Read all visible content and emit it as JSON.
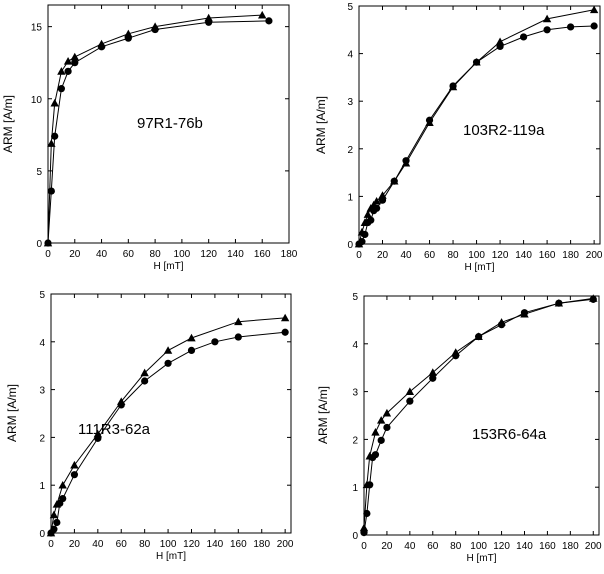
{
  "chart_data": [
    {
      "type": "line",
      "annotation": "97R1-76b",
      "xlabel": "H [mT]",
      "ylabel": "ARM [A/m]",
      "xlim": [
        0,
        180
      ],
      "ylim": [
        0,
        16.5
      ],
      "xticks": [
        0,
        20,
        40,
        60,
        80,
        100,
        120,
        140,
        160,
        180
      ],
      "yticks": [
        0,
        5,
        10,
        15
      ],
      "series": [
        {
          "marker": "triangle",
          "x": [
            0,
            2.5,
            5,
            10,
            15,
            20,
            40,
            60,
            80,
            120,
            160
          ],
          "y": [
            0,
            6.9,
            9.7,
            11.9,
            12.6,
            12.9,
            13.8,
            14.5,
            15.0,
            15.6,
            15.8
          ]
        },
        {
          "marker": "circle",
          "x": [
            0,
            2.5,
            5,
            10,
            15,
            20,
            40,
            60,
            80,
            120,
            165
          ],
          "y": [
            0,
            3.6,
            7.4,
            10.7,
            11.9,
            12.5,
            13.6,
            14.2,
            14.8,
            15.3,
            15.4
          ]
        }
      ]
    },
    {
      "type": "line",
      "annotation": "103R2-119a",
      "xlabel": "H [mT]",
      "ylabel": "ARM [A/m]",
      "xlim": [
        0,
        205
      ],
      "ylim": [
        0,
        5
      ],
      "xticks": [
        0,
        20,
        40,
        60,
        80,
        100,
        120,
        140,
        160,
        180,
        200
      ],
      "yticks": [
        0,
        1,
        2,
        3,
        4,
        5
      ],
      "series": [
        {
          "marker": "triangle",
          "x": [
            0,
            2.5,
            5,
            7.5,
            10,
            12.5,
            15,
            20,
            30,
            40,
            60,
            80,
            100,
            120,
            160,
            200
          ],
          "y": [
            0,
            0.25,
            0.45,
            0.62,
            0.75,
            0.82,
            0.9,
            1.02,
            1.32,
            1.7,
            2.55,
            3.3,
            3.82,
            4.25,
            4.73,
            4.92
          ]
        },
        {
          "marker": "circle",
          "x": [
            0,
            2.5,
            5,
            7.5,
            10,
            12.5,
            15,
            20,
            30,
            40,
            60,
            80,
            100,
            120,
            140,
            160,
            180,
            200
          ],
          "y": [
            0,
            0.05,
            0.2,
            0.45,
            0.5,
            0.7,
            0.75,
            0.92,
            1.32,
            1.75,
            2.6,
            3.32,
            3.82,
            4.15,
            4.35,
            4.5,
            4.56,
            4.58
          ]
        }
      ]
    },
    {
      "type": "line",
      "annotation": "111R3-62a",
      "xlabel": "H [mT]",
      "ylabel": "ARM [A/m]",
      "xlim": [
        0,
        205
      ],
      "ylim": [
        0,
        5
      ],
      "xticks": [
        0,
        20,
        40,
        60,
        80,
        100,
        120,
        140,
        160,
        180,
        200
      ],
      "yticks": [
        0,
        1,
        2,
        3,
        4,
        5
      ],
      "series": [
        {
          "marker": "triangle",
          "x": [
            0,
            2.5,
            5,
            10,
            20,
            40,
            60,
            80,
            100,
            120,
            160,
            200
          ],
          "y": [
            0,
            0.38,
            0.6,
            1.0,
            1.42,
            2.07,
            2.75,
            3.35,
            3.82,
            4.08,
            4.42,
            4.5
          ]
        },
        {
          "marker": "circle",
          "x": [
            0,
            2.5,
            5,
            7.5,
            10,
            20,
            40,
            60,
            80,
            100,
            120,
            140,
            160,
            200
          ],
          "y": [
            0,
            0.08,
            0.22,
            0.62,
            0.72,
            1.22,
            1.98,
            2.68,
            3.18,
            3.55,
            3.82,
            4.0,
            4.1,
            4.2
          ]
        }
      ]
    },
    {
      "type": "line",
      "annotation": "153R6-64a",
      "xlabel": "H [mT]",
      "ylabel": "ARM [A/m]",
      "xlim": [
        0,
        205
      ],
      "ylim": [
        0,
        5
      ],
      "xticks": [
        0,
        20,
        40,
        60,
        80,
        100,
        120,
        140,
        160,
        180,
        200
      ],
      "yticks": [
        0,
        1,
        2,
        3,
        4,
        5
      ],
      "series": [
        {
          "marker": "triangle",
          "x": [
            0,
            2.5,
            5,
            10,
            15,
            20,
            40,
            60,
            80,
            100,
            120,
            140,
            170,
            200
          ],
          "y": [
            0.15,
            1.05,
            1.65,
            2.15,
            2.4,
            2.55,
            3.0,
            3.4,
            3.82,
            4.15,
            4.45,
            4.62,
            4.85,
            4.95
          ]
        },
        {
          "marker": "circle",
          "x": [
            0,
            2.5,
            5,
            7.5,
            10,
            15,
            20,
            40,
            60,
            80,
            100,
            120,
            140,
            170,
            200
          ],
          "y": [
            0.05,
            0.45,
            1.05,
            1.62,
            1.68,
            1.98,
            2.25,
            2.8,
            3.28,
            3.75,
            4.15,
            4.4,
            4.65,
            4.85,
            4.93
          ]
        }
      ]
    }
  ]
}
